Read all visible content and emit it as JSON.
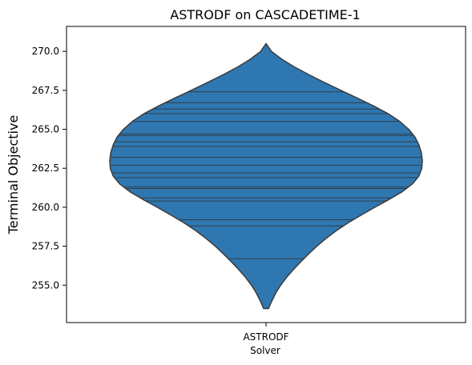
{
  "chart_data": {
    "type": "violin",
    "title": "ASTRODF on CASCADETIME-1",
    "xlabel": "Solver",
    "ylabel": "Terminal Objective",
    "categories": [
      "ASTRODF"
    ],
    "ylim": [
      252.6,
      271.6
    ],
    "yticks": [
      255.0,
      257.5,
      260.0,
      262.5,
      265.0,
      267.5,
      270.0
    ],
    "ytick_labels": [
      "255.0",
      "257.5",
      "260.0",
      "262.5",
      "265.0",
      "267.5",
      "270.0"
    ],
    "grid": false,
    "legend": "none",
    "color": "#2f77b1",
    "edge_color": "#3b3b3b",
    "density_profile": {
      "y": [
        253.5,
        254.0,
        254.5,
        255.0,
        255.5,
        256.0,
        256.5,
        257.0,
        257.5,
        258.0,
        258.5,
        259.0,
        259.5,
        260.0,
        260.5,
        261.0,
        261.5,
        262.0,
        262.5,
        263.0,
        263.5,
        264.0,
        264.5,
        265.0,
        265.5,
        266.0,
        266.5,
        267.0,
        267.5,
        268.0,
        268.5,
        269.0,
        269.5,
        270.0,
        270.5
      ],
      "half_width": [
        0.05,
        0.12,
        0.2,
        0.3,
        0.42,
        0.56,
        0.71,
        0.87,
        1.04,
        1.23,
        1.44,
        1.68,
        1.95,
        2.23,
        2.52,
        2.79,
        3.0,
        3.13,
        3.19,
        3.2,
        3.18,
        3.13,
        3.05,
        2.92,
        2.74,
        2.5,
        2.2,
        1.87,
        1.53,
        1.2,
        0.88,
        0.58,
        0.32,
        0.11,
        0.0
      ]
    },
    "observations": [
      256.7,
      258.8,
      259.2,
      260.4,
      260.6,
      261.2,
      261.3,
      261.9,
      262.2,
      262.7,
      263.2,
      263.9,
      264.2,
      264.6,
      264.7,
      265.5,
      266.0,
      266.3,
      266.7,
      267.4
    ]
  }
}
